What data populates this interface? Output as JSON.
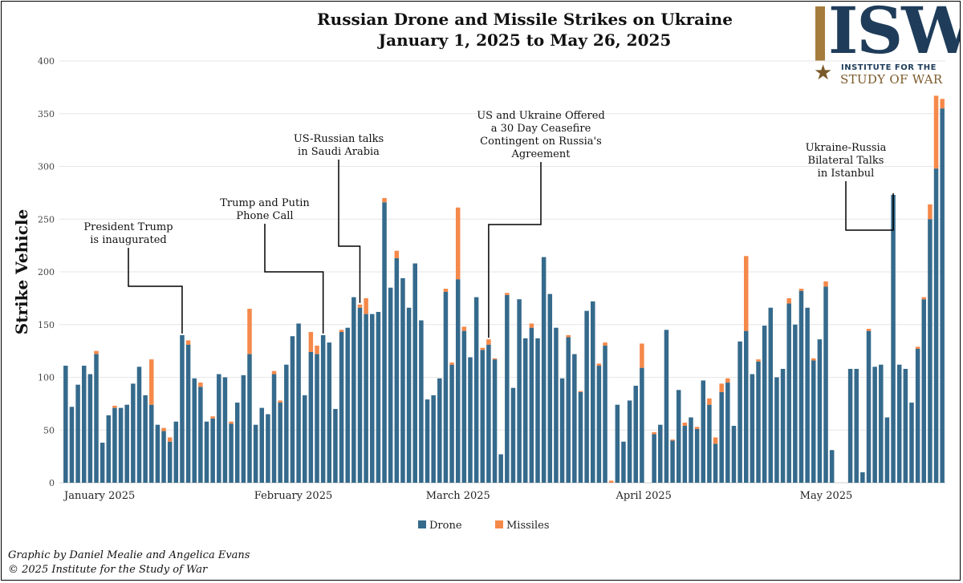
{
  "title_line1": "Russian Drone and Missile Strikes on Ukraine",
  "title_line2": "January 1, 2025 to May 26, 2025",
  "logo": {
    "letters": "ISW",
    "sub1": "INSTITUTE FOR THE",
    "sub2": "STUDY OF WAR"
  },
  "credits": {
    "line1": "Graphic by Daniel Mealie and Angelica Evans",
    "line2": "© 2025 Institute for the Study of War"
  },
  "colors": {
    "drone": "#356a8c",
    "missiles": "#f5894a",
    "grid": "#e6e6e6",
    "annotation": "#000000"
  },
  "chart_data": {
    "type": "bar",
    "stacked": true,
    "ylabel": "Strike Vehicle",
    "xlabel": "",
    "ylim": [
      0,
      400
    ],
    "yticks": [
      0,
      50,
      100,
      150,
      200,
      250,
      300,
      350,
      400
    ],
    "grid": true,
    "legend_position": "bottom-center",
    "x_start": "2025-01-01",
    "month_labels": [
      {
        "label": "January 2025",
        "date": "2025-01-01"
      },
      {
        "label": "February 2025",
        "date": "2025-02-01"
      },
      {
        "label": "March 2025",
        "date": "2025-03-01"
      },
      {
        "label": "April 2025",
        "date": "2025-04-01"
      },
      {
        "label": "May 2025",
        "date": "2025-05-01"
      }
    ],
    "series": [
      {
        "name": "Drone",
        "values": [
          111,
          72,
          93,
          111,
          103,
          122,
          38,
          64,
          71,
          71,
          74,
          94,
          110,
          83,
          74,
          55,
          49,
          39,
          58,
          140,
          131,
          99,
          91,
          58,
          61,
          103,
          100,
          56,
          76,
          102,
          122,
          55,
          71,
          65,
          103,
          76,
          112,
          139,
          151,
          83,
          124,
          122,
          140,
          133,
          70,
          143,
          147,
          176,
          166,
          160,
          160,
          162,
          266,
          185,
          213,
          194,
          166,
          208,
          154,
          79,
          83,
          99,
          181,
          112,
          193,
          144,
          119,
          176,
          126,
          131,
          117,
          27,
          178,
          90,
          174,
          137,
          147,
          137,
          214,
          179,
          147,
          99,
          138,
          122,
          86,
          163,
          172,
          111,
          130,
          0,
          74,
          39,
          78,
          92,
          109,
          0,
          46,
          55,
          145,
          40,
          88,
          54,
          62,
          51,
          97,
          74,
          37,
          86,
          95,
          54,
          134,
          144,
          103,
          115,
          149,
          166,
          100,
          108,
          170,
          150,
          182,
          166,
          116,
          136,
          186,
          31,
          0,
          0,
          108,
          108,
          10,
          144,
          110,
          112,
          62,
          273,
          112,
          108,
          76,
          127,
          174,
          250,
          298,
          355
        ]
      },
      {
        "name": "Missiles",
        "values": [
          0,
          0,
          0,
          0,
          0,
          3,
          0,
          0,
          2,
          0,
          0,
          0,
          0,
          0,
          43,
          0,
          3,
          4,
          0,
          0,
          4,
          0,
          4,
          0,
          2,
          0,
          0,
          2,
          0,
          0,
          43,
          0,
          0,
          0,
          3,
          2,
          0,
          0,
          0,
          0,
          19,
          8,
          0,
          0,
          0,
          2,
          0,
          0,
          3,
          15,
          0,
          0,
          4,
          0,
          7,
          0,
          0,
          0,
          0,
          0,
          0,
          0,
          3,
          2,
          68,
          4,
          0,
          0,
          2,
          5,
          1,
          0,
          2,
          0,
          0,
          0,
          4,
          0,
          0,
          0,
          0,
          0,
          2,
          0,
          1,
          0,
          0,
          2,
          3,
          2,
          0,
          0,
          0,
          0,
          23,
          0,
          2,
          0,
          0,
          1,
          0,
          3,
          0,
          2,
          0,
          6,
          6,
          8,
          4,
          0,
          0,
          71,
          0,
          2,
          0,
          0,
          0,
          0,
          5,
          0,
          2,
          0,
          2,
          0,
          5,
          0,
          0,
          0,
          0,
          0,
          0,
          2,
          0,
          0,
          0,
          0,
          0,
          0,
          0,
          2,
          2,
          14,
          69,
          9
        ]
      }
    ],
    "annotations": [
      {
        "lines": [
          "President Trump",
          "is inaugurated"
        ],
        "date": "2025-01-20"
      },
      {
        "lines": [
          "Trump and Putin",
          "Phone Call"
        ],
        "date": "2025-02-12"
      },
      {
        "lines": [
          "US-Russian talks",
          "in Saudi Arabia"
        ],
        "date": "2025-02-18"
      },
      {
        "lines": [
          "US and Ukraine Offered",
          "a 30 Day Ceasefire",
          "Contingent on Russia's",
          "Agreement"
        ],
        "date": "2025-03-11"
      },
      {
        "lines": [
          "Ukraine-Russia",
          "Bilateral Talks",
          "in Istanbul"
        ],
        "date": "2025-05-16"
      }
    ]
  }
}
